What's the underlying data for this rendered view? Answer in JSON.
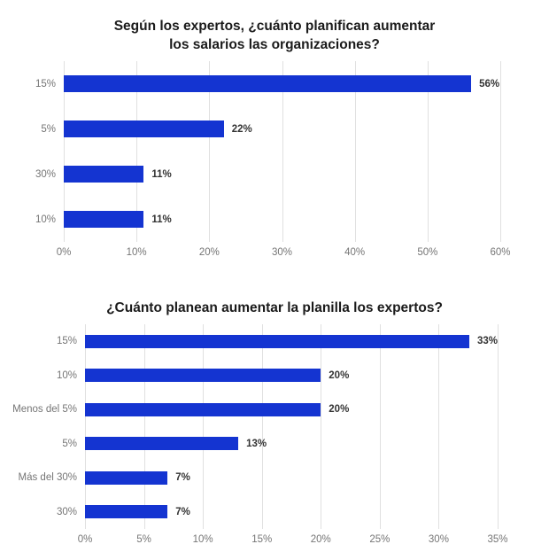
{
  "colors": {
    "bar": "#1434d1",
    "gridline": "#e0e0e0",
    "category_label": "#757575",
    "value_label": "#333333",
    "title": "#1b1b1b",
    "background": "#ffffff"
  },
  "chart_data": [
    {
      "type": "bar",
      "orientation": "horizontal",
      "title": "Según los expertos, ¿cuánto planifican aumentar los salarios las organizaciones?",
      "title_lines": [
        "Según los expertos, ¿cuánto planifican aumentar",
        "los salarios las organizaciones?"
      ],
      "categories": [
        "15%",
        "5%",
        "30%",
        "10%"
      ],
      "values": [
        56,
        22,
        11,
        11
      ],
      "value_labels": [
        "56%",
        "22%",
        "11%",
        "11%"
      ],
      "xlim": [
        0,
        60
      ],
      "x_ticks": [
        0,
        10,
        20,
        30,
        40,
        50,
        60
      ],
      "x_tick_labels": [
        "0%",
        "10%",
        "20%",
        "30%",
        "40%",
        "50%",
        "60%"
      ],
      "grid": true,
      "legend": "none"
    },
    {
      "type": "bar",
      "orientation": "horizontal",
      "title": "¿Cuánto planean aumentar la planilla los expertos?",
      "title_lines": [
        "¿Cuánto planean aumentar la planilla los expertos?"
      ],
      "categories": [
        "15%",
        "10%",
        "Menos del 5%",
        "5%",
        "Más del 30%",
        "30%"
      ],
      "values": [
        33,
        20,
        20,
        13,
        7,
        7
      ],
      "value_labels": [
        "33%",
        "20%",
        "20%",
        "13%",
        "7%",
        "7%"
      ],
      "xlim": [
        0,
        35
      ],
      "x_ticks": [
        0,
        5,
        10,
        15,
        20,
        25,
        30,
        35
      ],
      "x_tick_labels": [
        "0%",
        "5%",
        "10%",
        "15%",
        "20%",
        "25%",
        "30%",
        "35%"
      ],
      "grid": true,
      "legend": "none"
    }
  ]
}
